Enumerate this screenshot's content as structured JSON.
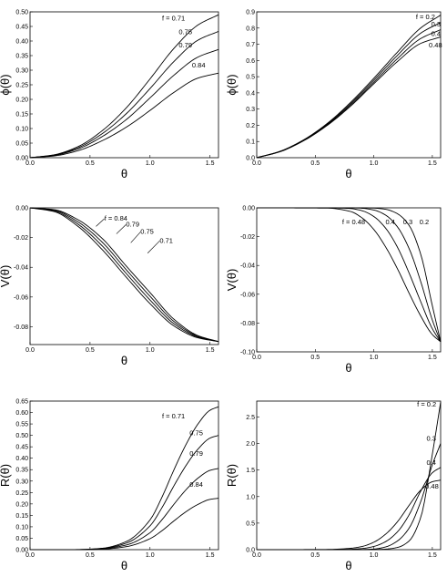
{
  "chart_data": [
    {
      "type": "line",
      "xlabel": "θ",
      "ylabel": "ϕ(θ)",
      "xlim": [
        0,
        1.5708
      ],
      "ylim": [
        0,
        0.5
      ],
      "xticks": [
        "0.0",
        "0.5",
        "1.0",
        "1.5"
      ],
      "xtick_values": [
        0,
        0.5,
        1.0,
        1.5
      ],
      "yticks": [
        "0.00",
        "0.05",
        "0.10",
        "0.15",
        "0.20",
        "0.25",
        "0.30",
        "0.35",
        "0.40",
        "0.45",
        "0.50"
      ],
      "ytick_values": [
        0,
        0.05,
        0.1,
        0.15,
        0.2,
        0.25,
        0.3,
        0.35,
        0.4,
        0.45,
        0.5
      ],
      "x": [
        0,
        0.2,
        0.4,
        0.6,
        0.8,
        1.0,
        1.2,
        1.4,
        1.5708
      ],
      "series": [
        {
          "name": "f = 0.71",
          "values": [
            0,
            0.01,
            0.038,
            0.092,
            0.17,
            0.27,
            0.375,
            0.455,
            0.49
          ]
        },
        {
          "name": "0.75",
          "values": [
            0,
            0.009,
            0.034,
            0.082,
            0.15,
            0.237,
            0.33,
            0.403,
            0.433
          ]
        },
        {
          "name": "0.79",
          "values": [
            0,
            0.008,
            0.03,
            0.072,
            0.13,
            0.205,
            0.283,
            0.345,
            0.371
          ]
        },
        {
          "name": "0.84",
          "values": [
            0,
            0.006,
            0.024,
            0.058,
            0.104,
            0.162,
            0.224,
            0.273,
            0.29
          ]
        }
      ],
      "annotations": [
        {
          "text": "f = 0.71",
          "x": 1.1,
          "y": 0.47
        },
        {
          "text": "0.75",
          "x": 1.24,
          "y": 0.424
        },
        {
          "text": "0.79",
          "x": 1.24,
          "y": 0.378
        },
        {
          "text": "0.84",
          "x": 1.35,
          "y": 0.31
        }
      ]
    },
    {
      "type": "line",
      "xlabel": "θ",
      "ylabel": "ϕ(θ)",
      "xlim": [
        0,
        1.5708
      ],
      "ylim": [
        0,
        0.9
      ],
      "xticks": [
        "0.0",
        "0.5",
        "1.0",
        "1.5"
      ],
      "xtick_values": [
        0,
        0.5,
        1.0,
        1.5
      ],
      "yticks": [
        "0.0",
        "0.1",
        "0.2",
        "0.3",
        "0.4",
        "0.5",
        "0.6",
        "0.7",
        "0.8",
        "0.9"
      ],
      "ytick_values": [
        0,
        0.1,
        0.2,
        0.3,
        0.4,
        0.5,
        0.6,
        0.7,
        0.8,
        0.9
      ],
      "x": [
        0,
        0.2,
        0.4,
        0.6,
        0.8,
        1.0,
        1.2,
        1.4,
        1.5708
      ],
      "series": [
        {
          "name": "f = 0.2",
          "values": [
            0,
            0.04,
            0.11,
            0.21,
            0.34,
            0.49,
            0.65,
            0.8,
            0.88
          ]
        },
        {
          "name": "0.3",
          "values": [
            0,
            0.039,
            0.108,
            0.206,
            0.332,
            0.478,
            0.63,
            0.768,
            0.835
          ]
        },
        {
          "name": "0.4",
          "values": [
            0,
            0.038,
            0.106,
            0.202,
            0.324,
            0.466,
            0.61,
            0.735,
            0.79
          ]
        },
        {
          "name": "0.48",
          "values": [
            0,
            0.037,
            0.104,
            0.198,
            0.317,
            0.456,
            0.592,
            0.705,
            0.745
          ]
        }
      ],
      "annotations": [
        {
          "text": "f = 0.2",
          "x": 1.36,
          "y": 0.855
        },
        {
          "text": "0.3",
          "x": 1.49,
          "y": 0.81
        },
        {
          "text": "0.4",
          "x": 1.49,
          "y": 0.75
        },
        {
          "text": "0.48",
          "x": 1.47,
          "y": 0.68
        }
      ]
    },
    {
      "type": "line",
      "xlabel": "θ",
      "ylabel": "V(θ)",
      "xlim": [
        0,
        1.5708
      ],
      "ylim": [
        -0.092,
        0
      ],
      "xticks": [
        "0.0",
        "0.5",
        "1.0",
        "1.5"
      ],
      "xtick_values": [
        0,
        0.5,
        1.0,
        1.5
      ],
      "yticks": [
        "0.00",
        "-0.02",
        "-0.04",
        "-0.06",
        "-0.08"
      ],
      "ytick_values": [
        0,
        -0.02,
        -0.04,
        -0.06,
        -0.08
      ],
      "x": [
        0,
        0.2,
        0.4,
        0.6,
        0.8,
        1.0,
        1.2,
        1.4,
        1.5708
      ],
      "series": [
        {
          "name": "f = 0.84",
          "values": [
            0,
            -0.0025,
            -0.0125,
            -0.028,
            -0.0465,
            -0.0645,
            -0.0795,
            -0.0875,
            -0.09
          ]
        },
        {
          "name": "0.79",
          "values": [
            0,
            -0.002,
            -0.011,
            -0.0255,
            -0.044,
            -0.062,
            -0.078,
            -0.087,
            -0.09
          ]
        },
        {
          "name": "0.75",
          "values": [
            0,
            -0.0015,
            -0.0095,
            -0.023,
            -0.0415,
            -0.0595,
            -0.0765,
            -0.0865,
            -0.09
          ]
        },
        {
          "name": "0.71",
          "values": [
            0,
            -0.0012,
            -0.008,
            -0.0205,
            -0.039,
            -0.057,
            -0.075,
            -0.086,
            -0.09
          ]
        }
      ],
      "annotations": [
        {
          "text": "f = 0.84",
          "x": 0.62,
          "y": -0.0085
        },
        {
          "text": "0.79",
          "x": 0.8,
          "y": -0.0125
        },
        {
          "text": "0.75",
          "x": 0.92,
          "y": -0.0175
        },
        {
          "text": "0.71",
          "x": 1.08,
          "y": -0.0235
        }
      ]
    },
    {
      "type": "line",
      "xlabel": "θ",
      "ylabel": "V(θ)",
      "xlim": [
        0,
        1.5708
      ],
      "ylim": [
        -0.1,
        0
      ],
      "xticks": [
        "0.0",
        "0.5",
        "1.0",
        "1.5"
      ],
      "xtick_values": [
        0,
        0.5,
        1.0,
        1.5
      ],
      "yticks": [
        "0.00",
        "-0.02",
        "-0.04",
        "-0.06",
        "-0.08",
        "-0.10"
      ],
      "ytick_values": [
        0,
        -0.02,
        -0.04,
        -0.06,
        -0.08,
        -0.1
      ],
      "x": [
        0,
        0.6,
        0.8,
        0.9,
        1.0,
        1.1,
        1.2,
        1.3,
        1.4,
        1.5,
        1.5708
      ],
      "series": [
        {
          "name": "f = 0.48",
          "values": [
            0,
            -0.0002,
            -0.0025,
            -0.007,
            -0.015,
            -0.027,
            -0.042,
            -0.059,
            -0.075,
            -0.088,
            -0.093
          ]
        },
        {
          "name": "0.4",
          "values": [
            0,
            0,
            -0.0005,
            -0.002,
            -0.006,
            -0.014,
            -0.027,
            -0.045,
            -0.065,
            -0.084,
            -0.093
          ]
        },
        {
          "name": "0.3",
          "values": [
            0,
            0,
            0,
            -0.0003,
            -0.0015,
            -0.005,
            -0.013,
            -0.028,
            -0.051,
            -0.078,
            -0.093
          ]
        },
        {
          "name": "0.2",
          "values": [
            0,
            0,
            0,
            0,
            -0.0002,
            -0.001,
            -0.004,
            -0.012,
            -0.032,
            -0.068,
            -0.093
          ]
        }
      ],
      "annotations": [
        {
          "text": "f = 0.48",
          "x": 0.73,
          "y": -0.0115
        },
        {
          "text": "0.4",
          "x": 1.1,
          "y": -0.0115
        },
        {
          "text": "0.3",
          "x": 1.25,
          "y": -0.0115
        },
        {
          "text": "0.2",
          "x": 1.39,
          "y": -0.0115
        }
      ]
    },
    {
      "type": "line",
      "xlabel": "θ",
      "ylabel": "R(θ)",
      "xlim": [
        0,
        1.5708
      ],
      "ylim": [
        0,
        0.65
      ],
      "xticks": [
        "0.0",
        "0.5",
        "1.0",
        "1.5"
      ],
      "xtick_values": [
        0,
        0.5,
        1.0,
        1.5
      ],
      "yticks": [
        "0.00",
        "0.05",
        "0.10",
        "0.15",
        "0.20",
        "0.25",
        "0.30",
        "0.35",
        "0.40",
        "0.45",
        "0.50",
        "0.55",
        "0.60",
        "0.65"
      ],
      "ytick_values": [
        0,
        0.05,
        0.1,
        0.15,
        0.2,
        0.25,
        0.3,
        0.35,
        0.4,
        0.45,
        0.5,
        0.55,
        0.6,
        0.65
      ],
      "x": [
        0,
        0.4,
        0.6,
        0.8,
        1.0,
        1.1,
        1.2,
        1.3,
        1.4,
        1.5,
        1.5708
      ],
      "series": [
        {
          "name": "f = 0.71",
          "values": [
            0,
            0.0005,
            0.006,
            0.035,
            0.13,
            0.23,
            0.35,
            0.46,
            0.55,
            0.61,
            0.625
          ]
        },
        {
          "name": "0.75",
          "values": [
            0,
            0.0004,
            0.005,
            0.028,
            0.104,
            0.184,
            0.28,
            0.368,
            0.44,
            0.488,
            0.5
          ]
        },
        {
          "name": "0.79",
          "values": [
            0,
            0.0003,
            0.004,
            0.02,
            0.074,
            0.131,
            0.199,
            0.262,
            0.313,
            0.347,
            0.355
          ]
        },
        {
          "name": "0.84",
          "values": [
            0,
            0.0002,
            0.002,
            0.013,
            0.048,
            0.083,
            0.126,
            0.166,
            0.198,
            0.22,
            0.225
          ]
        }
      ],
      "annotations": [
        {
          "text": "f = 0.71",
          "x": 1.1,
          "y": 0.575
        },
        {
          "text": "0.75",
          "x": 1.33,
          "y": 0.5
        },
        {
          "text": "0.79",
          "x": 1.33,
          "y": 0.41
        },
        {
          "text": "0.84",
          "x": 1.33,
          "y": 0.275
        }
      ]
    },
    {
      "type": "line",
      "xlabel": "θ",
      "ylabel": "R(θ)",
      "xlim": [
        0,
        1.5708
      ],
      "ylim": [
        0,
        2.8
      ],
      "xticks": [
        "0.0",
        "0.5",
        "1.0",
        "1.5"
      ],
      "xtick_values": [
        0,
        0.5,
        1.0,
        1.5
      ],
      "yticks": [
        "0.0",
        "0.5",
        "1.0",
        "1.5",
        "2.0",
        "2.5"
      ],
      "ytick_values": [
        0,
        0.5,
        1.0,
        1.5,
        2.0,
        2.5
      ],
      "x": [
        0,
        0.6,
        0.8,
        0.9,
        1.0,
        1.1,
        1.2,
        1.3,
        1.4,
        1.5,
        1.5708
      ],
      "series": [
        {
          "name": "f = 0.2",
          "values": [
            0,
            0,
            0,
            0,
            0.002,
            0.01,
            0.04,
            0.16,
            0.6,
            1.8,
            2.78
          ]
        },
        {
          "name": "0.3",
          "values": [
            0,
            0,
            0.001,
            0.003,
            0.012,
            0.05,
            0.16,
            0.4,
            0.9,
            1.6,
            2.0
          ]
        },
        {
          "name": "0.4",
          "values": [
            0,
            0.001,
            0.008,
            0.022,
            0.06,
            0.15,
            0.33,
            0.65,
            1.1,
            1.45,
            1.55
          ]
        },
        {
          "name": "0.48",
          "values": [
            0,
            0.004,
            0.025,
            0.06,
            0.14,
            0.29,
            0.52,
            0.83,
            1.12,
            1.28,
            1.31
          ]
        }
      ],
      "annotations": [
        {
          "text": "f = 0.2",
          "x": 1.37,
          "y": 2.7
        },
        {
          "text": "0.3",
          "x": 1.45,
          "y": 2.05
        },
        {
          "text": "0.4",
          "x": 1.45,
          "y": 1.6
        },
        {
          "text": "0.48",
          "x": 1.44,
          "y": 1.15
        }
      ]
    }
  ]
}
